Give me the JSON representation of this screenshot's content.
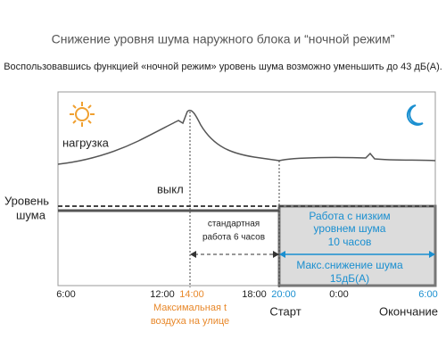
{
  "header": {
    "title": "Снижение уровня шума наружного блока и “ночной режим”",
    "subtitle": "Воспользовавшись функцией «ночной режим» уровень шума возможно уменьшить до 43 дБ(А)."
  },
  "diagram": {
    "load_label": "нагрузка",
    "off_label": "выкл",
    "noise_label": [
      "Уровень",
      "шума"
    ],
    "standard_label": [
      "стандартная",
      "работа 6 часов"
    ],
    "low_noise_label": [
      "Работа с низким",
      "уровнем шума",
      "10 часов"
    ],
    "reduction_label": [
      "Макс.снижение шума",
      "15дБ(А)"
    ],
    "time_ticks": [
      "6:00",
      "12:00",
      "14:00",
      "18:00",
      "20:00",
      "0:00",
      "6:00"
    ],
    "max_temp_label": [
      "Максимальная t",
      "воздуха на улице"
    ],
    "start_label": "Старт",
    "end_label": "Окончание"
  }
}
